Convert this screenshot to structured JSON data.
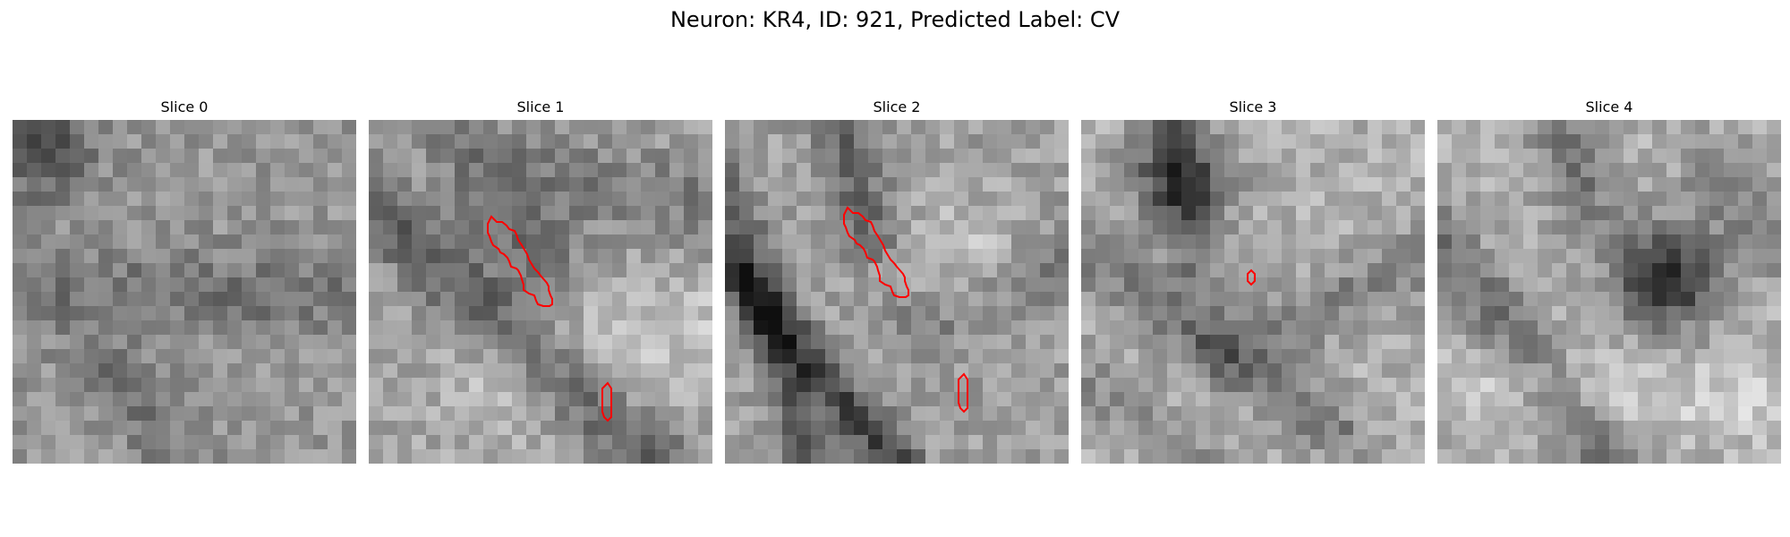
{
  "title": "Neuron: KR4, ID: 921, Predicted Label: CV",
  "colors": {
    "contour": "#ff0000"
  },
  "panels": [
    {
      "label": "Slice 0",
      "seed": 11,
      "contours": []
    },
    {
      "label": "Slice 1",
      "seed": 23,
      "contours": [
        "main-contour",
        "small-contour"
      ]
    },
    {
      "label": "Slice 2",
      "seed": 37,
      "contours": [
        "main-contour",
        "small-contour"
      ]
    },
    {
      "label": "Slice 3",
      "seed": 41,
      "contours": [
        "tiny-contour"
      ]
    },
    {
      "label": "Slice 4",
      "seed": 59,
      "contours": []
    }
  ]
}
